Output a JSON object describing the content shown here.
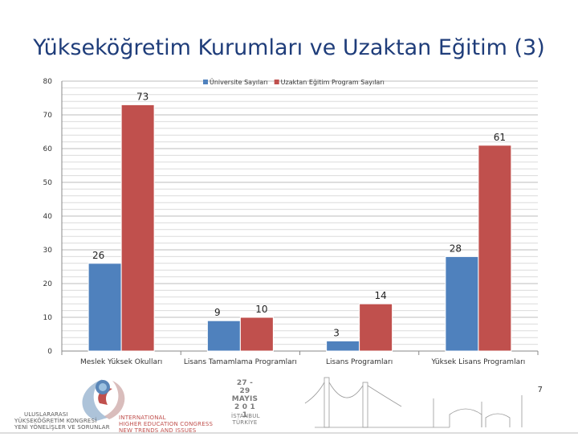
{
  "slide": {
    "title": "Yükseköğretim Kurumları ve Uzaktan Eğitim (3)",
    "page_number": "7"
  },
  "footer": {
    "left_line1": "ULUSLARARASI",
    "left_line2": "YÜKSEKÖĞRETİM KONGRESİ",
    "left_line3": "YENİ YÖNELİŞLER VE SORUNLAR",
    "intl_line1": "INTERNATIONAL",
    "intl_line2": "HIGHER EDUCATION CONGRESS",
    "intl_line3": "NEW TRENDS AND ISSUES",
    "date_line1": "27 - 29",
    "date_line2": "MAYIS",
    "date_line3": "2 0 1 1",
    "city_line1": "İSTANBUL",
    "city_line2": "TÜRKİYE"
  },
  "chart_data": {
    "type": "bar",
    "categories": [
      "Meslek Yüksek Okulları",
      "Lisans Tamamlama Programları",
      "Lisans Programları",
      "Yüksek Lisans Programları"
    ],
    "series": [
      {
        "name": "Üniversite Sayıları",
        "values": [
          26,
          9,
          3,
          28
        ],
        "color": "#4f81bd"
      },
      {
        "name": "Uzaktan Eğitim Program Sayıları",
        "values": [
          73,
          10,
          14,
          61
        ],
        "color": "#c0504d"
      }
    ],
    "ylim": [
      0,
      80
    ],
    "yticks": [
      0,
      10,
      20,
      30,
      40,
      50,
      60,
      70,
      80
    ],
    "grid": true,
    "legend": "top"
  }
}
